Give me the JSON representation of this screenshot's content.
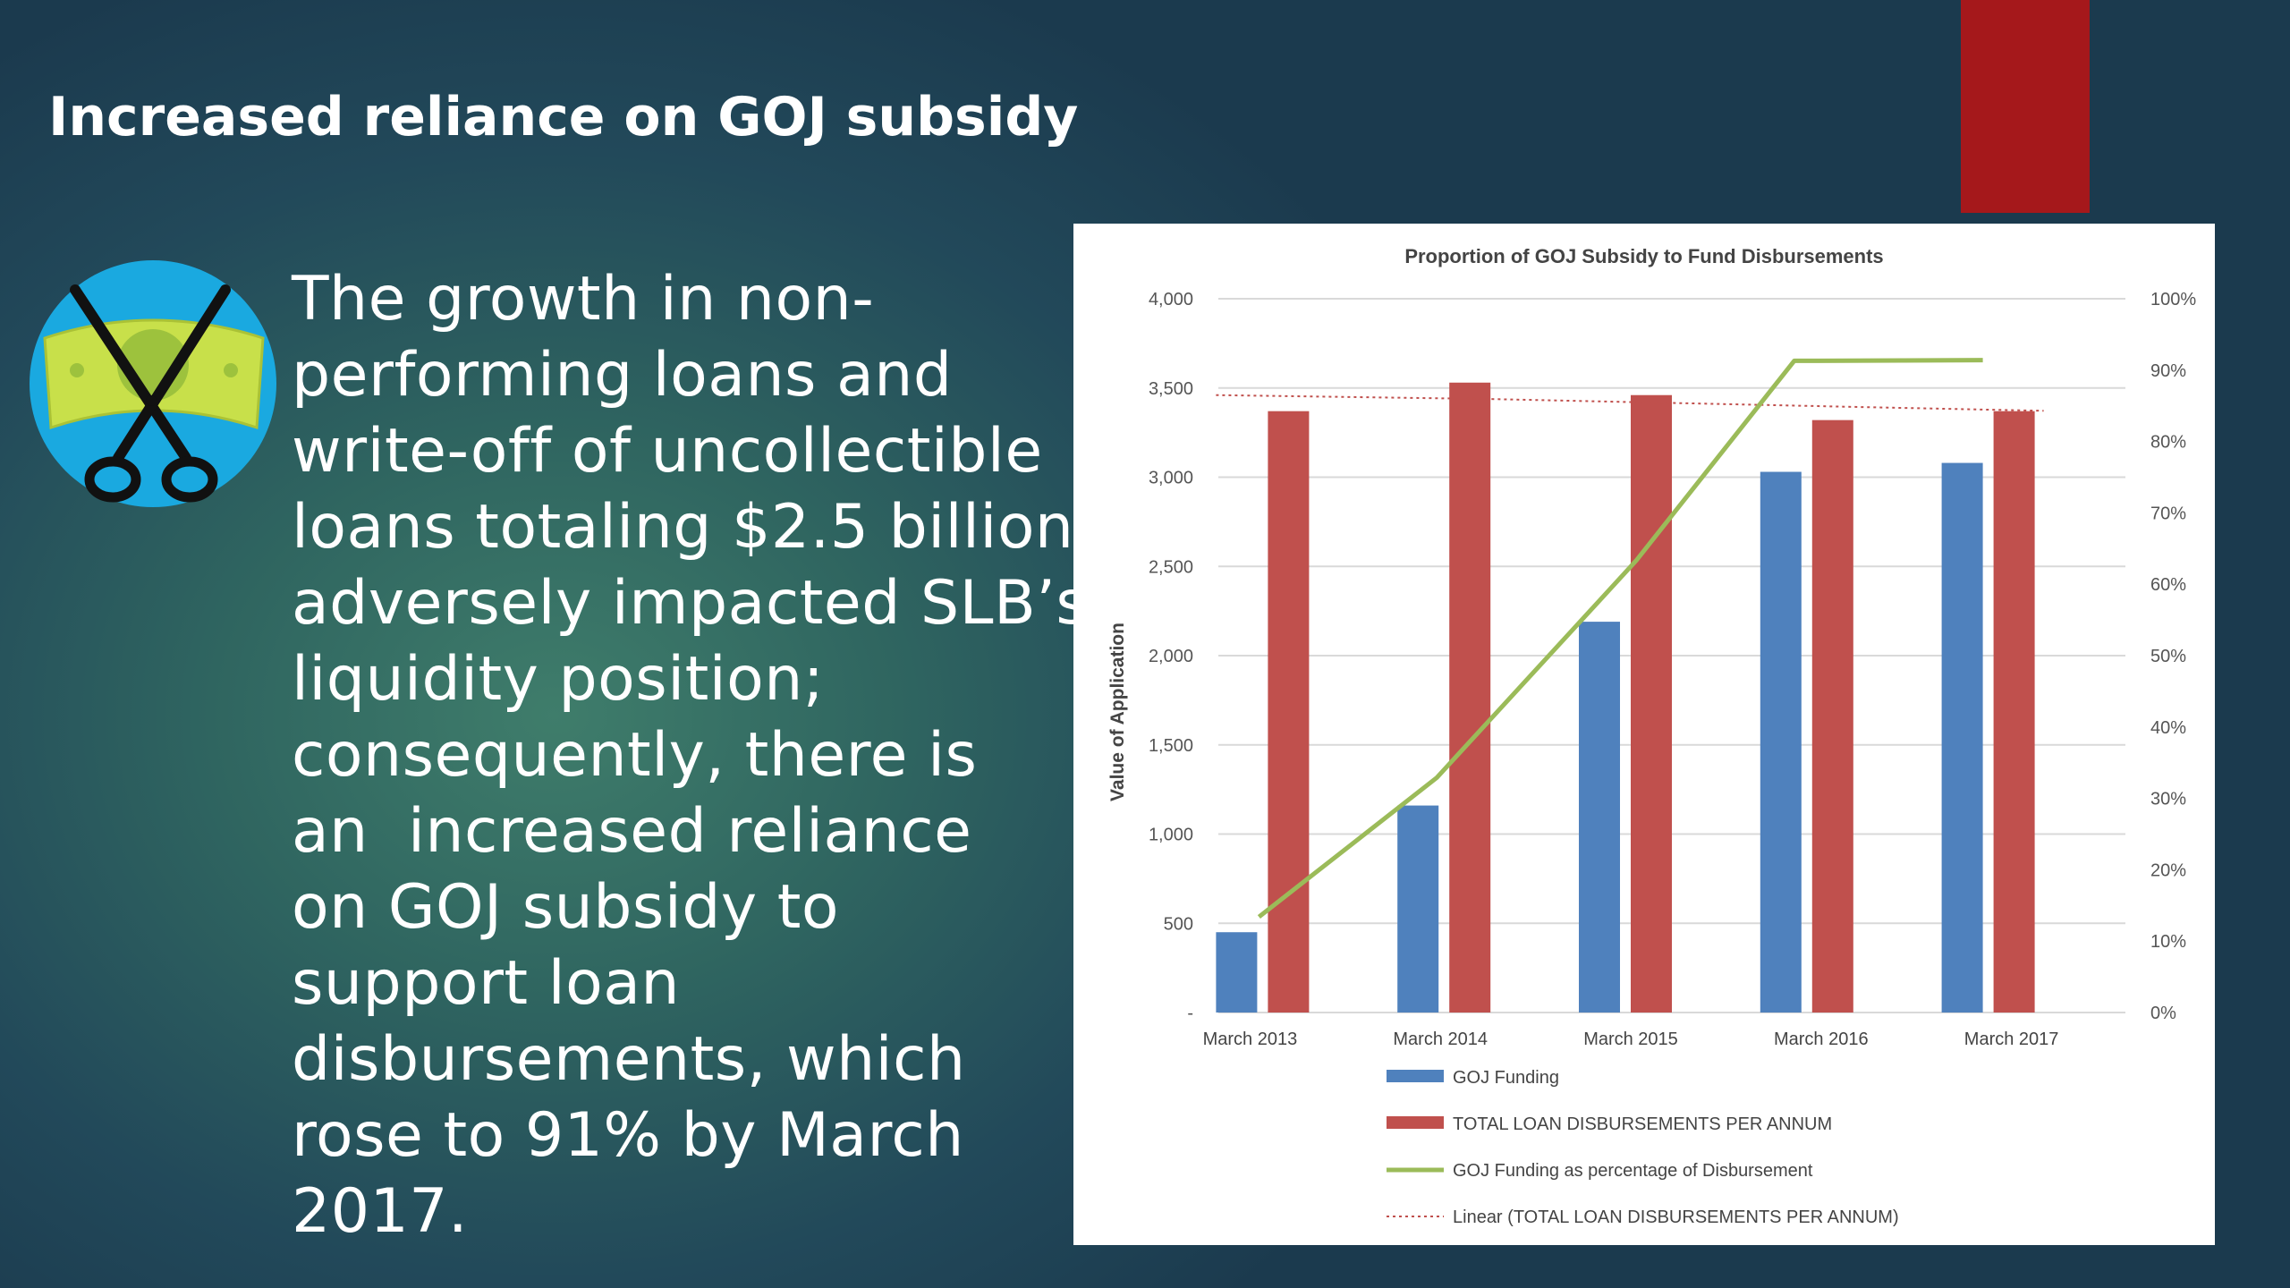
{
  "slide": {
    "title": "Increased reliance on GOJ subsidy",
    "body": "The growth in non-performing loans and write-off of uncollectible loans totaling $2.5 billion, adversely impacted SLB’s liquidity position; consequently, there is an  increased reliance on GOJ subsidy to support loan disbursements, which rose to 91% by March 2017.",
    "body_lines": [
      "The growth in non-",
      "performing loans and",
      "write-off of uncollectible",
      "loans totaling $2.5 billion,",
      "adversely impacted SLB’s",
      "liquidity position;",
      "consequently, there is",
      "an  increased reliance",
      "on GOJ subsidy to",
      "support loan",
      "disbursements, which",
      "rose to 91% by March",
      "2017."
    ],
    "icon": "scissors-cutting-money-icon",
    "accent_color": "#a5181b"
  },
  "chart_data": {
    "type": "bar",
    "title": "Proportion of GOJ Subsidy to Fund Disbursements",
    "ylabel": "Value of Application",
    "y2label": "",
    "categories": [
      "March 2013",
      "March 2014",
      "March 2015",
      "March 2016",
      "March 2017"
    ],
    "ylim": [
      0,
      4000
    ],
    "yticks": [
      "-",
      "500",
      "1,000",
      "1,500",
      "2,000",
      "2,500",
      "3,000",
      "3,500",
      "4,000"
    ],
    "ytick_values": [
      0,
      500,
      1000,
      1500,
      2000,
      2500,
      3000,
      3500,
      4000
    ],
    "y2lim": [
      0,
      100
    ],
    "y2ticks": [
      "0%",
      "10%",
      "20%",
      "30%",
      "40%",
      "50%",
      "60%",
      "70%",
      "80%",
      "90%",
      "100%"
    ],
    "y2tick_values": [
      0,
      10,
      20,
      30,
      40,
      50,
      60,
      70,
      80,
      90,
      100
    ],
    "grid": true,
    "legend_position": "bottom",
    "series": [
      {
        "name": "GOJ Funding",
        "kind": "bar",
        "color": "#4f81bd",
        "values": [
          450,
          1160,
          2190,
          3030,
          3080
        ]
      },
      {
        "name": "TOTAL LOAN DISBURSEMENTS PER ANNUM",
        "kind": "bar",
        "color": "#c0504d",
        "values": [
          3370,
          3530,
          3460,
          3320,
          3370
        ]
      },
      {
        "name": "GOJ Funding as percentage of Disbursement",
        "kind": "line",
        "axis": "right",
        "color": "#9bbb59",
        "values": [
          13.4,
          32.9,
          63.3,
          91.3,
          91.4
        ]
      },
      {
        "name": "Linear (TOTAL LOAN DISBURSEMENTS PER ANNUM)",
        "kind": "trendline",
        "color": "#c0504d",
        "dashed": true,
        "values": [
          3460,
          3438,
          3416,
          3394,
          3372
        ]
      }
    ]
  }
}
